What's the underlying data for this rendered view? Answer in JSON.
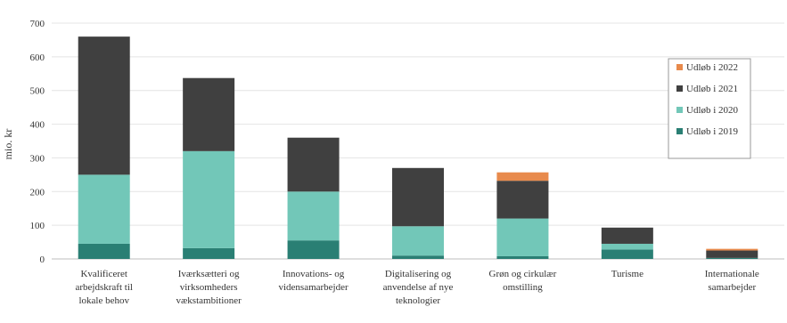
{
  "chart_data": {
    "type": "bar",
    "stacked": true,
    "title": "",
    "xlabel": "",
    "ylabel": "mio. kr",
    "ylim": [
      0,
      700
    ],
    "yticks": [
      0,
      100,
      200,
      300,
      400,
      500,
      600,
      700
    ],
    "grid": true,
    "legend_position": "right",
    "categories": [
      [
        "Kvalificeret",
        "arbejdskraft til",
        "lokale behov"
      ],
      [
        "Iværksætteri og",
        "virksomheders",
        "vækstambitioner"
      ],
      [
        "Innovations- og",
        "vidensamarbejder"
      ],
      [
        "Digitalisering og",
        "anvendelse af nye",
        "teknologier"
      ],
      [
        "Grøn og cirkulær",
        "omstilling"
      ],
      [
        "Turisme"
      ],
      [
        "Internationale",
        "samarbejder"
      ]
    ],
    "series": [
      {
        "name": "Udløb i 2019",
        "color": "#2a7f74",
        "values": [
          45,
          32,
          55,
          10,
          8,
          28,
          3
        ]
      },
      {
        "name": "Udløb i 2020",
        "color": "#72c7b8",
        "values": [
          205,
          288,
          145,
          87,
          112,
          17,
          0
        ]
      },
      {
        "name": "Udløb i 2021",
        "color": "#404040",
        "values": [
          410,
          217,
          160,
          173,
          112,
          48,
          22
        ]
      },
      {
        "name": "Udløb i 2022",
        "color": "#e88a4c",
        "values": [
          0,
          0,
          0,
          0,
          25,
          0,
          5
        ]
      }
    ]
  }
}
